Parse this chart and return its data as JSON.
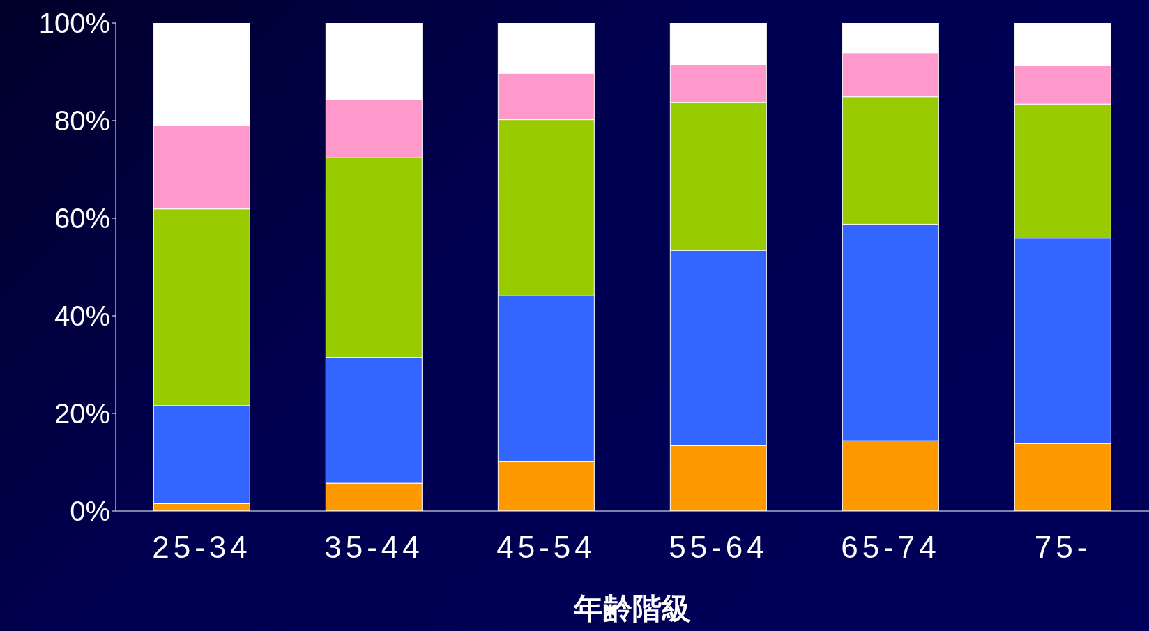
{
  "chart_data": {
    "type": "bar",
    "stacked": true,
    "xlabel": "年齢階級",
    "categories": [
      "25-34",
      "35-44",
      "45-54",
      "55-64",
      "65-74",
      "75-"
    ],
    "series": [
      {
        "color": "#ff9900",
        "values": [
          1.5,
          5.7,
          10.2,
          13.5,
          14.4,
          13.8
        ]
      },
      {
        "color": "#3366ff",
        "values": [
          20.1,
          25.8,
          33.9,
          39.9,
          44.4,
          42.1
        ]
      },
      {
        "color": "#99cc00",
        "values": [
          40.3,
          40.9,
          36.1,
          30.3,
          26.1,
          27.5
        ]
      },
      {
        "color": "#ff99cc",
        "values": [
          17.1,
          11.9,
          9.5,
          7.8,
          9.0,
          7.9
        ]
      },
      {
        "color": "#ffffff",
        "values": [
          21.0,
          15.7,
          10.3,
          8.5,
          6.1,
          8.7
        ]
      }
    ],
    "ylim": [
      0,
      100
    ],
    "yticks": [
      {
        "value": 0,
        "label": "0%"
      },
      {
        "value": 20,
        "label": "20%"
      },
      {
        "value": 40,
        "label": "40%"
      },
      {
        "value": 60,
        "label": "60%"
      },
      {
        "value": 80,
        "label": "80%"
      },
      {
        "value": 100,
        "label": "100%"
      }
    ]
  }
}
